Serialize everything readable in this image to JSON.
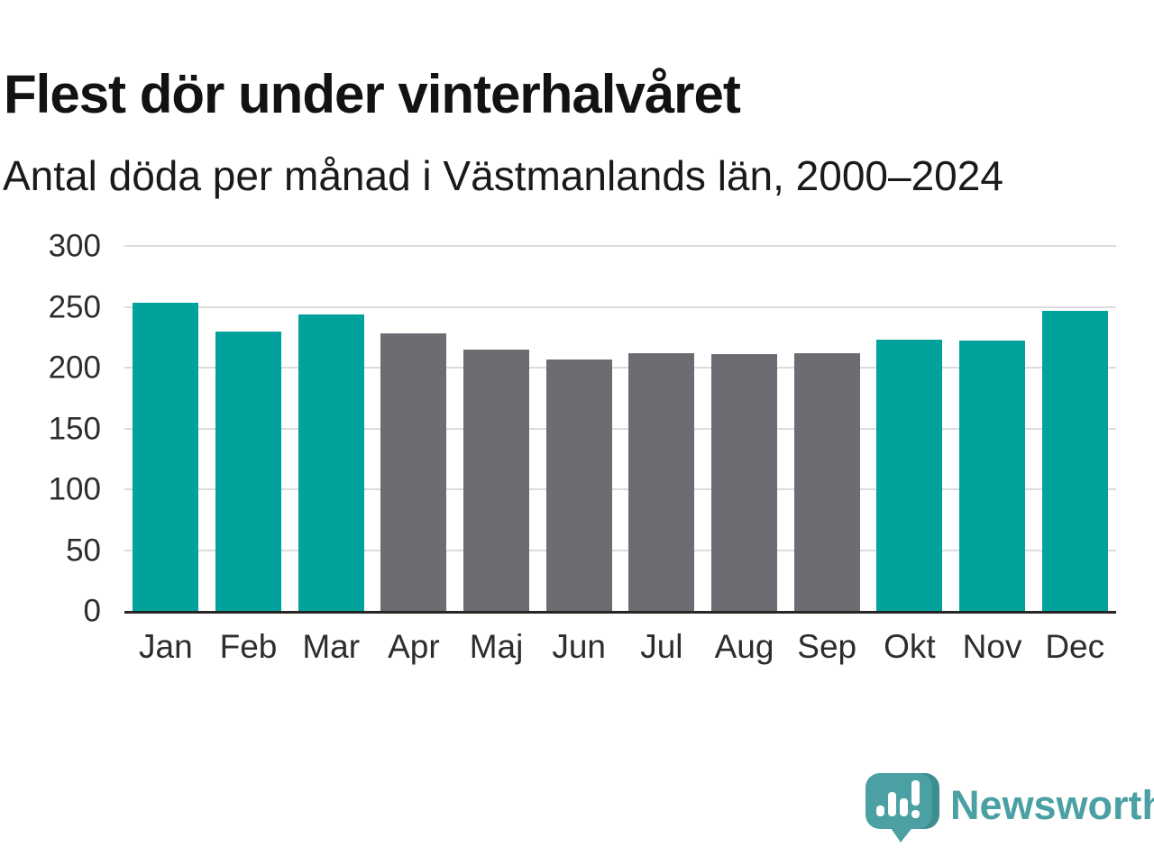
{
  "header": {
    "title": "Flest dör under vinterhalvåret",
    "subtitle": "Antal döda per månad i Västmanlands län, 2000–2024"
  },
  "brand": {
    "name": "Newsworthy",
    "logo_icon": "speech-bubble-bar-chart-icon",
    "color": "#4aa0a2",
    "color_dark": "#3e8d8f"
  },
  "colors": {
    "winter_bar": "#00a29b",
    "summer_bar": "#6f6b72",
    "gridline": "#dcdcdc",
    "axis_line": "#262626",
    "tick_text": "#2d2d2d"
  },
  "chart_data": {
    "type": "bar",
    "title": "Flest dör under vinterhalvåret",
    "subtitle": "Antal döda per månad i Västmanlands län, 2000–2024",
    "categories": [
      "Jan",
      "Feb",
      "Mar",
      "Apr",
      "Maj",
      "Jun",
      "Jul",
      "Aug",
      "Sep",
      "Okt",
      "Nov",
      "Dec"
    ],
    "values": [
      253,
      230,
      244,
      228,
      215,
      207,
      212,
      211,
      212,
      223,
      222,
      247
    ],
    "bar_groups": [
      "winter",
      "winter",
      "winter",
      "summer",
      "summer",
      "summer",
      "summer",
      "summer",
      "summer",
      "winter",
      "winter",
      "winter"
    ],
    "highlighted_months": [
      "Jan",
      "Feb",
      "Mar",
      "Okt",
      "Nov",
      "Dec"
    ],
    "xlabel": "",
    "ylabel": "",
    "ylim": [
      0,
      300
    ],
    "yticks": [
      0,
      50,
      100,
      150,
      200,
      250,
      300
    ],
    "grid": true,
    "legend": false
  }
}
